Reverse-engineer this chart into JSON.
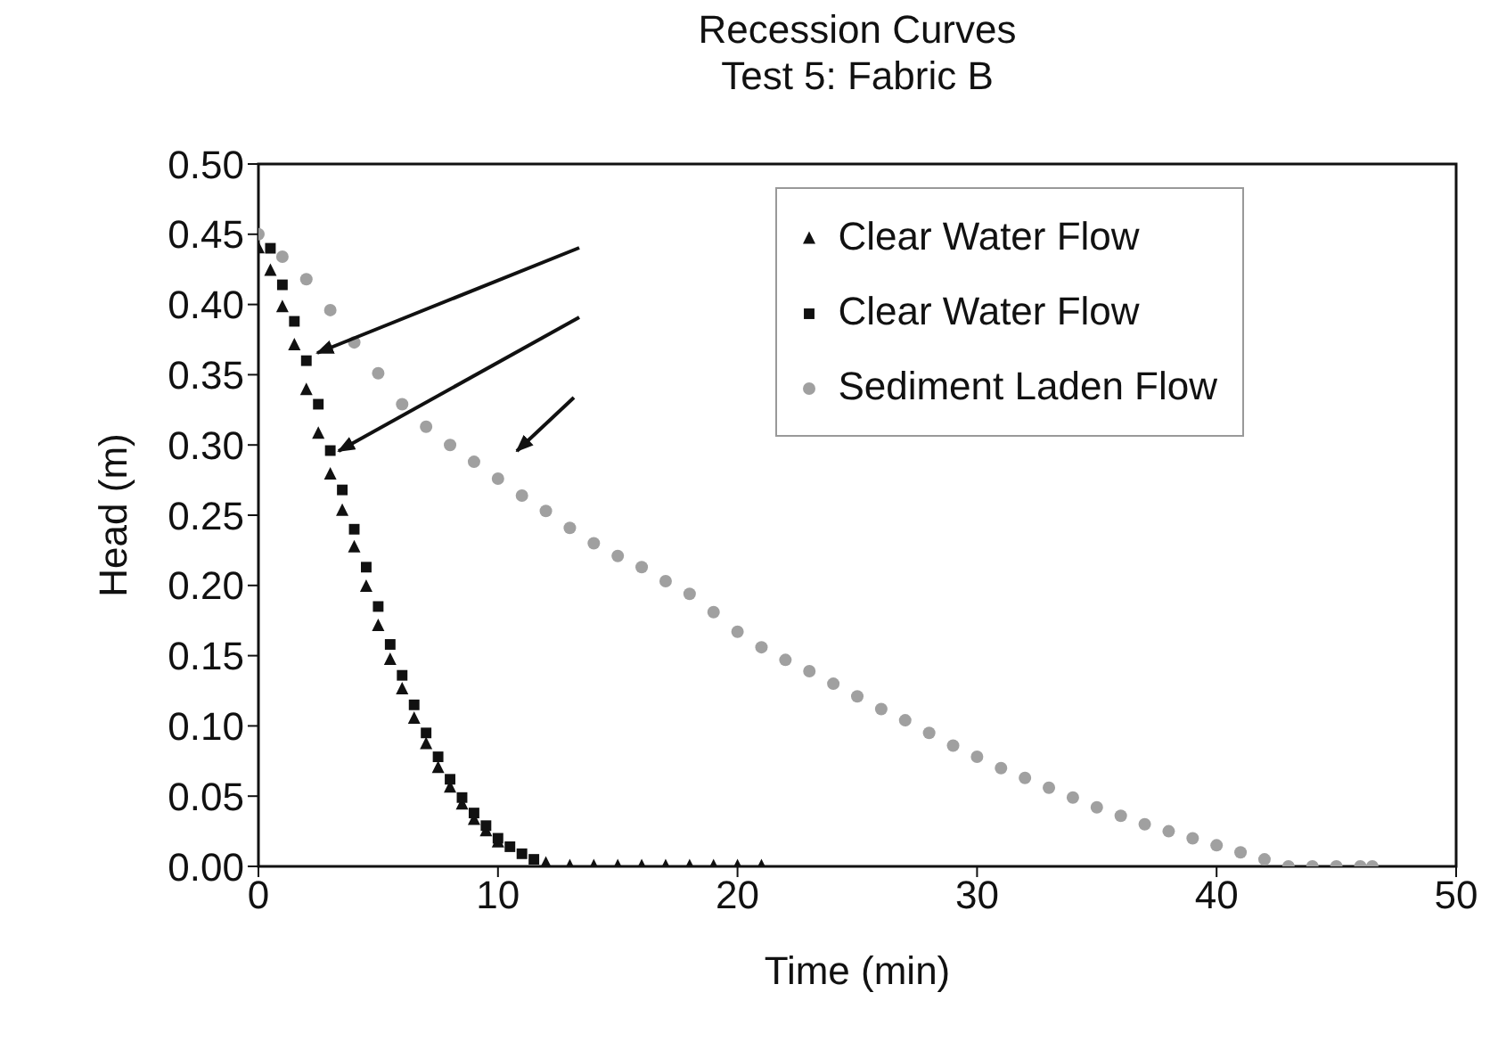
{
  "chart_data": {
    "type": "scatter",
    "title": "Recession Curves",
    "subtitle": "Test 5: Fabric B",
    "xlabel": "Time (min)",
    "ylabel": "Head (m)",
    "xlim": [
      0,
      50
    ],
    "xticks": [
      0,
      10,
      20,
      30,
      40,
      50
    ],
    "ylim": [
      0,
      0.5
    ],
    "yticks": [
      {
        "value": 0,
        "label": "0.00"
      },
      {
        "value": 0.05,
        "label": "0.05"
      },
      {
        "value": 0.1,
        "label": "0.10"
      },
      {
        "value": 0.15,
        "label": "0.15"
      },
      {
        "value": 0.2,
        "label": "0.20"
      },
      {
        "value": 0.25,
        "label": "0.25"
      },
      {
        "value": 0.3,
        "label": "0.30"
      },
      {
        "value": 0.35,
        "label": "0.35"
      },
      {
        "value": 0.4,
        "label": "0.40"
      },
      {
        "value": 0.45,
        "label": "0.45"
      },
      {
        "value": 0.5,
        "label": "0.50"
      }
    ],
    "grid": false,
    "legend": "top right",
    "series": [
      {
        "name": "Clear Water Flow",
        "color": "#111111",
        "marker": "triangle",
        "x": [
          0,
          0.5,
          1,
          1.5,
          2,
          2.5,
          3,
          3.5,
          4,
          4.5,
          5,
          5.5,
          6,
          6.5,
          7,
          7.5,
          8,
          8.5,
          9,
          9.5,
          10,
          12,
          13,
          14,
          15,
          16,
          17,
          18,
          19,
          20,
          21
        ],
        "values": [
          0.44,
          0.424,
          0.398,
          0.371,
          0.339,
          0.308,
          0.279,
          0.253,
          0.227,
          0.199,
          0.171,
          0.147,
          0.126,
          0.105,
          0.087,
          0.07,
          0.056,
          0.044,
          0.033,
          0.025,
          0.017,
          0.002,
          0,
          0,
          0,
          0,
          0,
          0,
          0,
          0,
          0
        ]
      },
      {
        "name": "Clear Water Flow",
        "color": "#111111",
        "marker": "square",
        "x": [
          0.5,
          1,
          1.5,
          2,
          2.5,
          3,
          3.5,
          4,
          4.5,
          5,
          5.5,
          6,
          6.5,
          7,
          7.5,
          8,
          8.5,
          9,
          9.5,
          10,
          10.5,
          11,
          11.5
        ],
        "values": [
          0.44,
          0.414,
          0.388,
          0.36,
          0.329,
          0.296,
          0.268,
          0.24,
          0.213,
          0.185,
          0.158,
          0.136,
          0.115,
          0.095,
          0.078,
          0.062,
          0.049,
          0.038,
          0.029,
          0.02,
          0.014,
          0.009,
          0.005
        ]
      },
      {
        "name": "Sediment Laden Flow",
        "color": "#a0a0a0",
        "marker": "circle",
        "x": [
          0,
          1,
          2,
          3,
          4,
          5,
          6,
          7,
          8,
          9,
          10,
          11,
          12,
          13,
          14,
          15,
          16,
          17,
          18,
          19,
          20,
          21,
          22,
          23,
          24,
          25,
          26,
          27,
          28,
          29,
          30,
          31,
          32,
          33,
          34,
          35,
          36,
          37,
          38,
          39,
          40,
          41,
          42,
          43,
          44,
          45,
          46,
          46.5
        ],
        "values": [
          0.45,
          0.434,
          0.418,
          0.396,
          0.373,
          0.351,
          0.329,
          0.313,
          0.3,
          0.288,
          0.276,
          0.264,
          0.253,
          0.241,
          0.23,
          0.221,
          0.213,
          0.203,
          0.194,
          0.181,
          0.167,
          0.156,
          0.147,
          0.139,
          0.13,
          0.121,
          0.112,
          0.104,
          0.095,
          0.086,
          0.078,
          0.07,
          0.063,
          0.056,
          0.049,
          0.042,
          0.036,
          0.03,
          0.025,
          0.02,
          0.015,
          0.01,
          0.005,
          0,
          0,
          0,
          0,
          0
        ]
      }
    ]
  }
}
